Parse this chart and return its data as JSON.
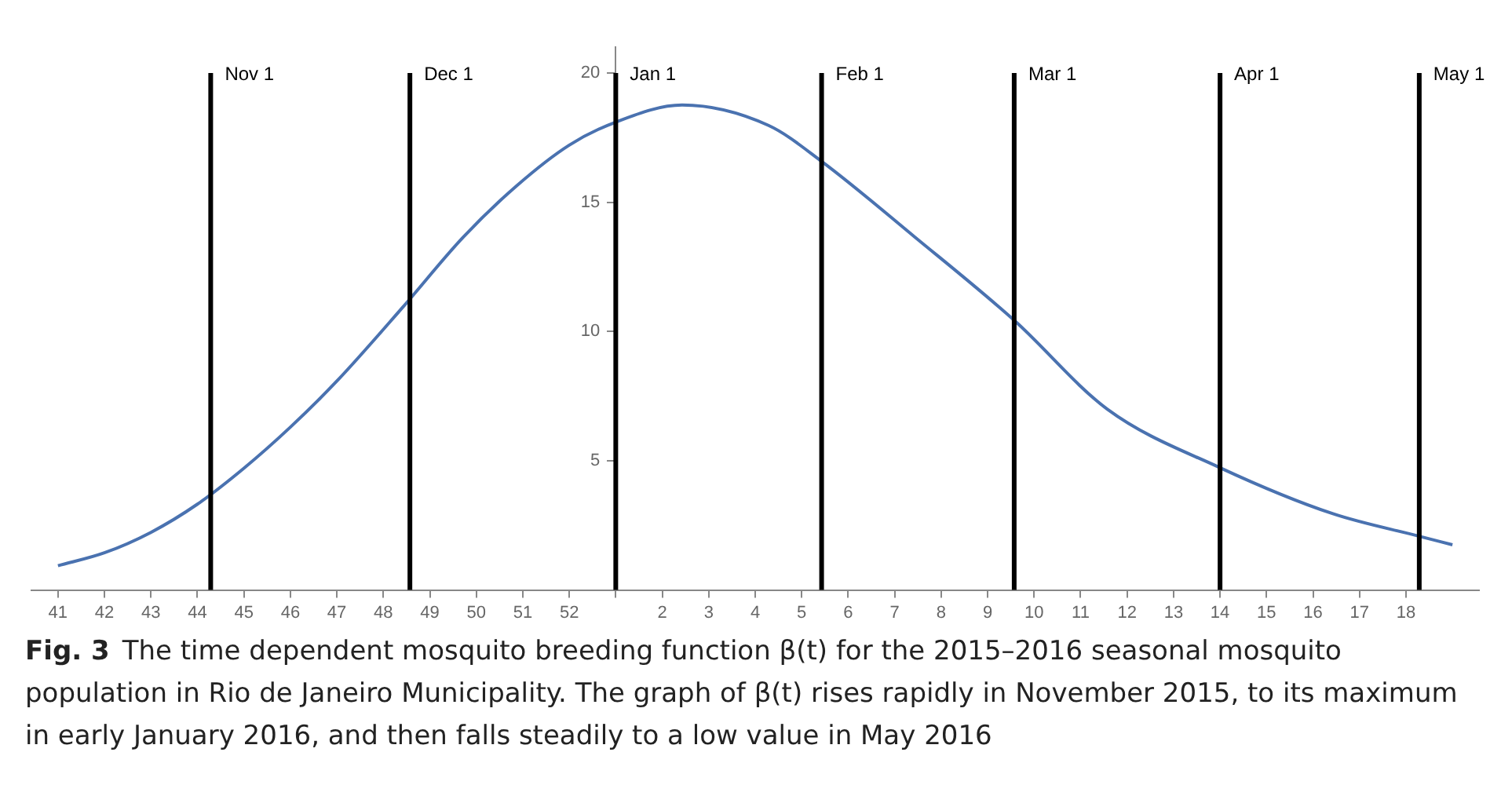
{
  "chart_data": {
    "type": "line",
    "annotations": [
      "Fig. 3",
      "The time dependent mosquito breeding function β(t) for the 2015–2016 seasonal mosquito population in Rio de Janeiro Municipality. The graph of β(t) rises rapidly in November 2015, to its maximum in early January 2016, and then falls steadily to a low value in May 2016"
    ],
    "x": [
      "2015-10-09",
      "2015-10-16",
      "2015-10-23",
      "2015-10-30",
      "2015-11-06",
      "2015-11-13",
      "2015-11-20",
      "2015-11-30",
      "2015-12-09",
      "2015-12-17",
      "2015-12-25",
      "2016-01-01",
      "2016-01-11",
      "2016-01-24",
      "2016-02-01",
      "2016-02-15",
      "2016-03-01",
      "2016-03-15",
      "2016-04-01",
      "2016-04-18",
      "2016-05-01",
      "2016-05-06"
    ],
    "series": [
      {
        "color": "#4a72b0",
        "values": [
          0.94,
          1.44,
          2.23,
          3.32,
          4.71,
          6.3,
          8.08,
          10.96,
          13.64,
          15.62,
          17.21,
          18.1,
          18.76,
          17.97,
          16.58,
          13.66,
          10.43,
          7.0,
          4.73,
          2.95,
          2.08,
          1.75
        ]
      }
    ],
    "xlim": [
      "2015-10-05",
      "2016-05-10"
    ],
    "ylim": [
      0,
      21
    ],
    "xticks": [
      {
        "value": "2015-10-09",
        "label": "41"
      },
      {
        "value": "2015-10-16",
        "label": "42"
      },
      {
        "value": "2015-10-23",
        "label": "43"
      },
      {
        "value": "2015-10-30",
        "label": "44"
      },
      {
        "value": "2015-11-06",
        "label": "45"
      },
      {
        "value": "2015-11-13",
        "label": "46"
      },
      {
        "value": "2015-11-20",
        "label": "47"
      },
      {
        "value": "2015-11-27",
        "label": "48"
      },
      {
        "value": "2015-12-04",
        "label": "49"
      },
      {
        "value": "2015-12-11",
        "label": "50"
      },
      {
        "value": "2015-12-18",
        "label": "51"
      },
      {
        "value": "2015-12-25",
        "label": "52"
      },
      {
        "value": "2016-01-01",
        "label": null
      },
      {
        "value": "2016-01-08",
        "label": "2"
      },
      {
        "value": "2016-01-15",
        "label": "3"
      },
      {
        "value": "2016-01-22",
        "label": "4"
      },
      {
        "value": "2016-01-29",
        "label": "5"
      },
      {
        "value": "2016-02-05",
        "label": "6"
      },
      {
        "value": "2016-02-12",
        "label": "7"
      },
      {
        "value": "2016-02-19",
        "label": "8"
      },
      {
        "value": "2016-02-26",
        "label": "9"
      },
      {
        "value": "2016-03-04",
        "label": "10"
      },
      {
        "value": "2016-03-11",
        "label": "11"
      },
      {
        "value": "2016-03-18",
        "label": "12"
      },
      {
        "value": "2016-03-25",
        "label": "13"
      },
      {
        "value": "2016-04-01",
        "label": "14"
      },
      {
        "value": "2016-04-08",
        "label": "15"
      },
      {
        "value": "2016-04-15",
        "label": "16"
      },
      {
        "value": "2016-04-22",
        "label": "17"
      },
      {
        "value": "2016-04-29",
        "label": "18"
      }
    ],
    "yticks": [
      5,
      10,
      15,
      20
    ],
    "grid": false,
    "legend": false,
    "marker": "none",
    "line_style": "solid",
    "ref_lines": [
      {
        "axis": "x",
        "value": "2015-11-01",
        "label": "Nov 1",
        "color": "#000000"
      },
      {
        "axis": "x",
        "value": "2015-12-01",
        "label": "Dec 1",
        "color": "#000000"
      },
      {
        "axis": "x",
        "value": "2016-01-01",
        "label": "Jan 1",
        "color": "#000000"
      },
      {
        "axis": "x",
        "value": "2016-02-01",
        "label": "Feb 1",
        "color": "#000000"
      },
      {
        "axis": "x",
        "value": "2016-03-01",
        "label": "Mar 1",
        "color": "#000000"
      },
      {
        "axis": "x",
        "value": "2016-04-01",
        "label": "Apr 1",
        "color": "#000000"
      },
      {
        "axis": "x",
        "value": "2016-05-01",
        "label": "May 1",
        "color": "#000000"
      }
    ]
  }
}
